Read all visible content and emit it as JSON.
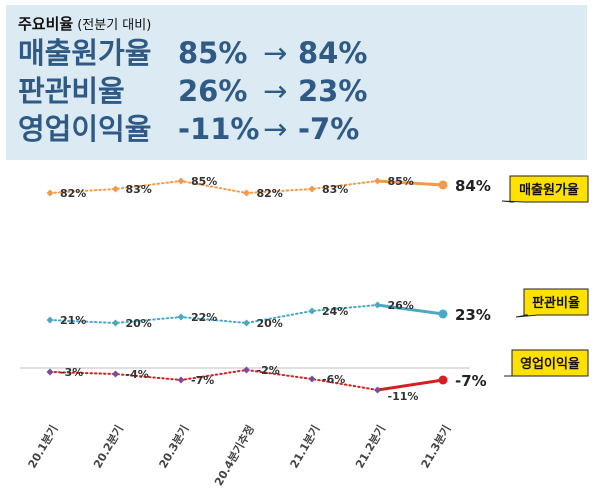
{
  "header": {
    "title": "주요비율",
    "subtitle": "(전분기 대비)",
    "arrow": "→",
    "metrics": [
      {
        "name": "매출원가율",
        "from": "85%",
        "to": "84%"
      },
      {
        "name": "판관비율",
        "from": "26%",
        "to": "23%"
      },
      {
        "name": "영업이익율",
        "from": "-11%",
        "to": "-7%"
      }
    ]
  },
  "chart_data": {
    "type": "line",
    "categories": [
      "20.1분기",
      "20.2분기",
      "20.3분기",
      "20.4분기추정",
      "21.1분기",
      "21.2분기",
      "21.3분기"
    ],
    "series": [
      {
        "name": "매출원가율",
        "color": "#f29a4a",
        "values": [
          82,
          83,
          85,
          82,
          83,
          85,
          84
        ],
        "labels": [
          "82%",
          "83%",
          "85%",
          "82%",
          "83%",
          "85%",
          "84%"
        ]
      },
      {
        "name": "판관비율",
        "color": "#4aa8c4",
        "values": [
          21,
          20,
          22,
          20,
          24,
          26,
          23
        ],
        "labels": [
          "21%",
          "20%",
          "22%",
          "20%",
          "24%",
          "26%",
          "23%"
        ]
      },
      {
        "name": "영업이익율",
        "color": "#d42020",
        "values": [
          -3,
          -4,
          -7,
          -2,
          -6,
          -11,
          -7
        ],
        "labels": [
          "-3%",
          "-4%",
          "-7%",
          "-2%",
          "-6%",
          "-11%",
          "-7%"
        ]
      }
    ],
    "grid": false,
    "legend": "callouts-right"
  }
}
